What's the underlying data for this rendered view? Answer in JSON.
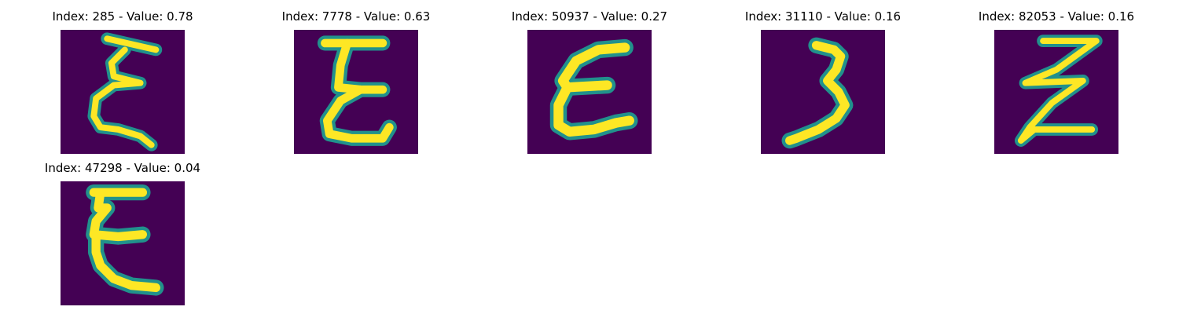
{
  "colors": {
    "background": "#440154",
    "stroke_core": "#fde725",
    "stroke_edge": "#21918c"
  },
  "panels": [
    {
      "title": "Index: 285 - Value: 0.78",
      "index": 285,
      "value": 0.78,
      "glyph": "ξ"
    },
    {
      "title": "Index: 7778 - Value: 0.63",
      "index": 7778,
      "value": 0.63,
      "glyph": "E"
    },
    {
      "title": "Index: 50937 - Value: 0.27",
      "index": 50937,
      "value": 0.27,
      "glyph": "ε"
    },
    {
      "title": "Index: 31110 - Value: 0.16",
      "index": 31110,
      "value": 0.16,
      "glyph": "3"
    },
    {
      "title": "Index: 82053 - Value: 0.16",
      "index": 82053,
      "value": 0.16,
      "glyph": "Z"
    },
    {
      "title": "Index: 47298 - Value: 0.04",
      "index": 47298,
      "value": 0.04,
      "glyph": "E"
    }
  ]
}
